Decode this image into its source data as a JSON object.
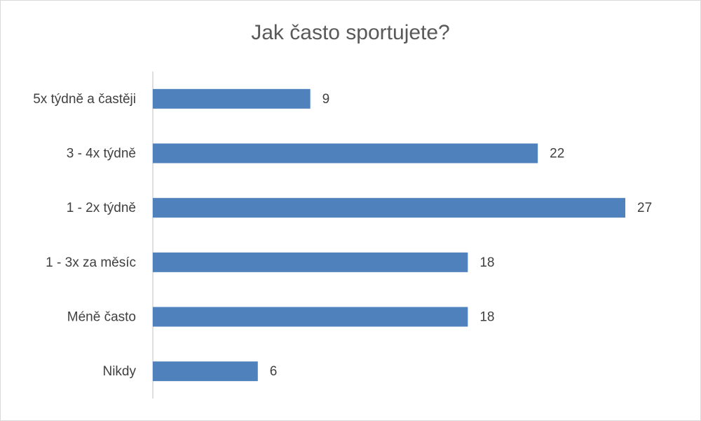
{
  "chart_data": {
    "type": "bar",
    "orientation": "horizontal",
    "title": "Jak často sportujete?",
    "categories": [
      "5x týdně a častěji",
      "3 - 4x týdně",
      "1 - 2x týdně",
      "1 - 3x za měsíc",
      "Méně často",
      "Nikdy"
    ],
    "values": [
      9,
      22,
      27,
      18,
      18,
      6
    ],
    "color": "#4f81bd",
    "grid": false
  }
}
